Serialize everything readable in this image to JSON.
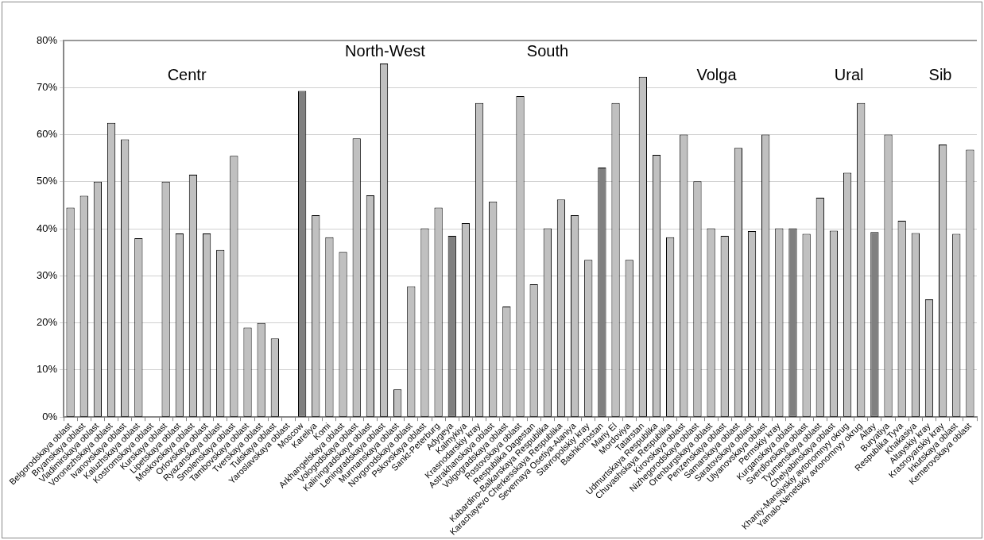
{
  "chart_data": {
    "type": "bar",
    "categories": [
      "Belgorodskaya oblast",
      "Bryanskaya oblast",
      "Vladimirskaya oblast",
      "Voronezhskaya oblast",
      "Ivanovskaya oblast",
      "Kaluzhskaya oblast",
      "Kostromskaya oblast",
      "Kurskaya oblast",
      "Lipetskaya oblast",
      "Moskovskaya oblast",
      "Orlovskaya oblast",
      "Ryazanskaya oblast",
      "Smolenskaya oblast",
      "Tambovskaya oblast",
      "Tverskaya oblast",
      "Tulskaya oblast",
      "Yaroslavskaya oblast",
      "Moscow",
      "Kareliya",
      "Komi",
      "Arkhangelskaya oblast",
      "Vologodskaya oblast",
      "Kaliningradskaya oblast",
      "Leningradskaya oblast",
      "Murmanskaya oblast",
      "Novgorodskaya oblast",
      "Pskovskaya oblast",
      "Sankt-Peterburg",
      "Adygeya",
      "Kalmykiya",
      "Krasnodarskiy kray",
      "Astrakhanskaya oblast",
      "Volgogradskaya oblast",
      "Rostovskaya oblast",
      "Respublika Dagestan",
      "Kabardino-Balkarskaya Respublika",
      "Karachayevo Cherkesskaya Respublika",
      "Severnaya Osetiya-Alaniya",
      "Stavropolskiy kray",
      "Bashkortostan",
      "Mariy El",
      "Mordoviya",
      "Tatarstan",
      "Udmurtskaya Respublika",
      "Chuvashskaya Respublika",
      "Kirovskaya oblast",
      "Nizhegorodskaya oblast",
      "Orenburgskaya oblast",
      "Penzenskaya oblast",
      "Samarskaya oblast",
      "Saratovskaya oblast",
      "Ulyanovskaya oblast",
      "Permskiy kray",
      "Kurganskaya oblast",
      "Sverdlovskaya oblast",
      "Tyumenskaya oblast",
      "Chelyabinskaya oblast",
      "Khanty-Mansiyskiy avtonomnyy okrug",
      "Yamalo-Nenetskiy avtonomnyy okrug",
      "Altay",
      "Buryatiya",
      "Respublika Tyva",
      "Khakasiya",
      "Altayskiy kray",
      "Krasnoyarskiy kray",
      "Irkutskaya oblast",
      "Kemerovskaya oblast"
    ],
    "values": [
      44.5,
      47,
      50,
      62.5,
      59,
      38,
      null,
      50,
      39,
      51.5,
      39,
      35.5,
      55.5,
      19,
      20,
      16.7,
      null,
      69.3,
      42.9,
      38.2,
      35.1,
      59.2,
      47.1,
      75.1,
      5.9,
      27.8,
      40.1,
      44.5,
      38.5,
      41.2,
      66.7,
      45.8,
      23.5,
      68.2,
      28.2,
      40.1,
      46.2,
      42.9,
      33.4,
      53,
      66.7,
      33.4,
      72.3,
      55.7,
      38.2,
      60,
      50.1,
      40.1,
      38.5,
      57.2,
      39.5,
      60,
      40.1,
      40.1,
      38.9,
      46.6,
      39.6,
      51.9,
      66.7,
      39.3,
      60,
      41.7,
      39.1,
      25,
      57.9,
      38.9,
      56.8
    ],
    "colors": [
      "#c0c0c0",
      "#c0c0c0",
      "#c0c0c0",
      "#c0c0c0",
      "#c0c0c0",
      "#c0c0c0",
      "#c0c0c0",
      "#c0c0c0",
      "#c0c0c0",
      "#c0c0c0",
      "#c0c0c0",
      "#c0c0c0",
      "#c0c0c0",
      "#c0c0c0",
      "#c0c0c0",
      "#c0c0c0",
      "#c0c0c0",
      "#808080",
      "#c0c0c0",
      "#c0c0c0",
      "#c0c0c0",
      "#c0c0c0",
      "#c0c0c0",
      "#c0c0c0",
      "#c0c0c0",
      "#c0c0c0",
      "#c0c0c0",
      "#c0c0c0",
      "#808080",
      "#c0c0c0",
      "#c0c0c0",
      "#c0c0c0",
      "#c0c0c0",
      "#c0c0c0",
      "#c0c0c0",
      "#c0c0c0",
      "#c0c0c0",
      "#c0c0c0",
      "#c0c0c0",
      "#808080",
      "#c0c0c0",
      "#c0c0c0",
      "#c0c0c0",
      "#c0c0c0",
      "#c0c0c0",
      "#c0c0c0",
      "#c0c0c0",
      "#c0c0c0",
      "#c0c0c0",
      "#c0c0c0",
      "#c0c0c0",
      "#c0c0c0",
      "#c0c0c0",
      "#808080",
      "#c0c0c0",
      "#c0c0c0",
      "#c0c0c0",
      "#c0c0c0",
      "#c0c0c0",
      "#808080",
      "#c0c0c0",
      "#c0c0c0",
      "#c0c0c0",
      "#c0c0c0",
      "#c0c0c0",
      "#c0c0c0",
      "#c0c0c0"
    ],
    "ylim": [
      0,
      80
    ],
    "yticks": [
      {
        "value": 0,
        "label": "0%"
      },
      {
        "value": 10,
        "label": "10%"
      },
      {
        "value": 20,
        "label": "20%"
      },
      {
        "value": 30,
        "label": "30%"
      },
      {
        "value": 40,
        "label": "40%"
      },
      {
        "value": 50,
        "label": "50%"
      },
      {
        "value": 60,
        "label": "60%"
      },
      {
        "value": 70,
        "label": "70%"
      },
      {
        "value": 80,
        "label": "80%"
      }
    ],
    "grid": "y",
    "legend": false,
    "annotations": [
      "Centr",
      "North-West",
      "South",
      "Volga",
      "Ural",
      "Sib"
    ]
  }
}
